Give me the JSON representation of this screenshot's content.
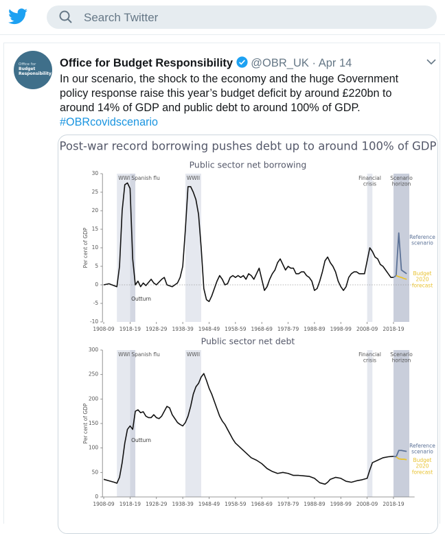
{
  "header": {
    "search_placeholder": "Search Twitter"
  },
  "tweet": {
    "avatar_text": [
      "Office for",
      "Budget",
      "Responsibility"
    ],
    "author_name": "Office for Budget Responsibility",
    "handle": "@OBR_UK",
    "separator": "·",
    "date": "Apr 14",
    "text": "In our scenario, the shock to the economy and the huge Government policy response raise this year’s budget deficit by around £220bn to around 14% of GDP and public debt to around 100% of GDP.",
    "hashtag": "#OBRcovidscenario",
    "image_title": "Post-war record borrowing pushes debt up to around 100% of GDP"
  },
  "chart_data": [
    {
      "type": "line",
      "title": "Public sector net borrowing",
      "y_label": "Per cent of GDP",
      "xlim": [
        1907,
        2026
      ],
      "xticks": [
        {
          "value": 1908,
          "label": "1908-09"
        },
        {
          "value": 1918,
          "label": "1918-19"
        },
        {
          "value": 1928,
          "label": "1928-29"
        },
        {
          "value": 1938,
          "label": "1938-39"
        },
        {
          "value": 1948,
          "label": "1948-49"
        },
        {
          "value": 1958,
          "label": "1958-59"
        },
        {
          "value": 1968,
          "label": "1968-69"
        },
        {
          "value": 1978,
          "label": "1978-79"
        },
        {
          "value": 1988,
          "label": "1988-89"
        },
        {
          "value": 1998,
          "label": "1998-99"
        },
        {
          "value": 2008,
          "label": "2008-09"
        },
        {
          "value": 2018,
          "label": "2018-19"
        }
      ],
      "ylim": [
        -10,
        30
      ],
      "yticks": [
        -10,
        -5,
        0,
        5,
        10,
        15,
        20,
        25,
        30
      ],
      "bands": [
        {
          "label": "WWI",
          "x": [
            1913,
            1918
          ]
        },
        {
          "label": "Spanish flu",
          "x": [
            1918,
            1920
          ]
        },
        {
          "label": "WWII",
          "x": [
            1939,
            1945
          ]
        },
        {
          "label": "Financial crisis",
          "x": [
            2008,
            2010
          ]
        },
        {
          "label": "Scenario horizon",
          "x": [
            2018,
            2024
          ]
        }
      ],
      "series": [
        {
          "name": "Outturn",
          "color": "#111111",
          "x": [
            1908,
            1910,
            1913,
            1914,
            1915,
            1916,
            1917,
            1918,
            1919,
            1920,
            1921,
            1922,
            1923,
            1924,
            1926,
            1927,
            1928,
            1930,
            1931,
            1932,
            1934,
            1935,
            1936,
            1937,
            1938,
            1939,
            1940,
            1941,
            1942,
            1943,
            1944,
            1945,
            1946,
            1947,
            1948,
            1949,
            1950,
            1951,
            1952,
            1953,
            1954,
            1955,
            1956,
            1957,
            1958,
            1959,
            1960,
            1961,
            1962,
            1963,
            1964,
            1965,
            1966,
            1967,
            1968,
            1969,
            1970,
            1971,
            1972,
            1973,
            1974,
            1975,
            1976,
            1977,
            1978,
            1979,
            1980,
            1981,
            1982,
            1983,
            1984,
            1985,
            1986,
            1987,
            1988,
            1989,
            1990,
            1991,
            1992,
            1993,
            1994,
            1995,
            1996,
            1997,
            1998,
            1999,
            2000,
            2001,
            2002,
            2003,
            2004,
            2005,
            2006,
            2007,
            2008,
            2009,
            2010,
            2011,
            2012,
            2013,
            2014,
            2015,
            2016,
            2017,
            2018
          ],
          "values": [
            0,
            0.3,
            -0.5,
            5,
            20,
            27,
            27.5,
            26,
            7,
            0,
            1,
            -0.5,
            0.5,
            -0.2,
            1.5,
            0.5,
            0,
            1.5,
            2,
            0,
            -0.5,
            0,
            0.5,
            2,
            5,
            15,
            26.5,
            26.5,
            25,
            23,
            19,
            10,
            -1,
            -4,
            -4.5,
            -3,
            -1,
            1,
            2.5,
            1.5,
            0,
            0.3,
            2,
            2.5,
            2,
            2.5,
            2,
            2.5,
            1.5,
            3,
            2.5,
            1.5,
            3,
            4.5,
            1.5,
            -1.5,
            -0.5,
            1.5,
            3,
            4,
            6,
            7,
            5.5,
            4,
            5,
            4.5,
            4.5,
            3,
            3,
            3.5,
            3.5,
            2.5,
            2,
            1,
            -1.5,
            -1,
            1,
            3.5,
            6.5,
            7.5,
            6,
            5,
            3.5,
            1,
            -0.5,
            -1.5,
            -0.5,
            2,
            3,
            3.5,
            3.5,
            3,
            3,
            3,
            6.5,
            10,
            9,
            7.5,
            7,
            5.5,
            5,
            4,
            3,
            2,
            2
          ]
        },
        {
          "name": "Reference scenario",
          "color": "#5b7196",
          "x": [
            2018,
            2019,
            2020,
            2021,
            2022,
            2023
          ],
          "values": [
            2,
            2.5,
            14,
            4,
            3.5,
            3
          ]
        },
        {
          "name": "Budget 2020 forecast",
          "color": "#e8c230",
          "x": [
            2019,
            2020,
            2021,
            2022,
            2023
          ],
          "values": [
            2.5,
            2.2,
            2,
            1.7,
            1.5
          ]
        }
      ]
    },
    {
      "type": "line",
      "title": "Public sector net debt",
      "y_label": "Per cent of GDP",
      "xlim": [
        1907,
        2026
      ],
      "xticks": [
        {
          "value": 1908,
          "label": "1908-09"
        },
        {
          "value": 1918,
          "label": "1918-19"
        },
        {
          "value": 1928,
          "label": "1928-29"
        },
        {
          "value": 1938,
          "label": "1938-39"
        },
        {
          "value": 1948,
          "label": "1948-49"
        },
        {
          "value": 1958,
          "label": "1958-59"
        },
        {
          "value": 1968,
          "label": "1968-69"
        },
        {
          "value": 1978,
          "label": "1978-79"
        },
        {
          "value": 1988,
          "label": "1988-89"
        },
        {
          "value": 1998,
          "label": "1998-99"
        },
        {
          "value": 2008,
          "label": "2008-09"
        },
        {
          "value": 2018,
          "label": "2018-19"
        }
      ],
      "ylim": [
        0,
        300
      ],
      "yticks": [
        0,
        50,
        100,
        150,
        200,
        250,
        300
      ],
      "bands": [
        {
          "label": "WWI",
          "x": [
            1913,
            1918
          ]
        },
        {
          "label": "Spanish flu",
          "x": [
            1918,
            1920
          ]
        },
        {
          "label": "WWII",
          "x": [
            1939,
            1945
          ]
        },
        {
          "label": "Financial crisis",
          "x": [
            2008,
            2010
          ]
        },
        {
          "label": "Scenario horizon",
          "x": [
            2018,
            2024
          ]
        }
      ],
      "series": [
        {
          "name": "Outturn",
          "color": "#111111",
          "x": [
            1908,
            1910,
            1912,
            1913,
            1914,
            1915,
            1916,
            1917,
            1918,
            1919,
            1920,
            1921,
            1922,
            1923,
            1924,
            1925,
            1926,
            1927,
            1928,
            1929,
            1930,
            1931,
            1932,
            1933,
            1934,
            1935,
            1936,
            1937,
            1938,
            1939,
            1940,
            1941,
            1942,
            1943,
            1944,
            1945,
            1946,
            1947,
            1948,
            1949,
            1950,
            1951,
            1952,
            1953,
            1954,
            1955,
            1956,
            1957,
            1958,
            1959,
            1960,
            1962,
            1964,
            1966,
            1968,
            1970,
            1972,
            1974,
            1976,
            1978,
            1980,
            1982,
            1984,
            1986,
            1988,
            1990,
            1992,
            1993,
            1994,
            1996,
            1998,
            2000,
            2002,
            2004,
            2006,
            2008,
            2009,
            2010,
            2012,
            2014,
            2016,
            2018
          ],
          "values": [
            36,
            33,
            30,
            28,
            40,
            70,
            110,
            138,
            145,
            138,
            175,
            178,
            172,
            174,
            165,
            162,
            162,
            168,
            162,
            160,
            165,
            175,
            185,
            182,
            168,
            160,
            152,
            148,
            145,
            152,
            165,
            185,
            210,
            225,
            232,
            245,
            252,
            238,
            222,
            210,
            195,
            180,
            165,
            155,
            148,
            138,
            128,
            118,
            110,
            105,
            100,
            90,
            80,
            75,
            68,
            58,
            52,
            48,
            50,
            48,
            44,
            44,
            43,
            42,
            38,
            29,
            26,
            30,
            36,
            40,
            38,
            32,
            30,
            33,
            35,
            38,
            55,
            70,
            75,
            80,
            82,
            83
          ]
        },
        {
          "name": "Reference scenario",
          "color": "#5b7196",
          "x": [
            2018,
            2019,
            2020,
            2021,
            2022,
            2023
          ],
          "values": [
            83,
            82,
            95,
            95,
            94,
            93
          ]
        },
        {
          "name": "Budget 2020 forecast",
          "color": "#e8c230",
          "x": [
            2019,
            2020,
            2021,
            2022,
            2023
          ],
          "values": [
            82,
            78,
            77,
            77,
            76
          ]
        }
      ]
    }
  ]
}
